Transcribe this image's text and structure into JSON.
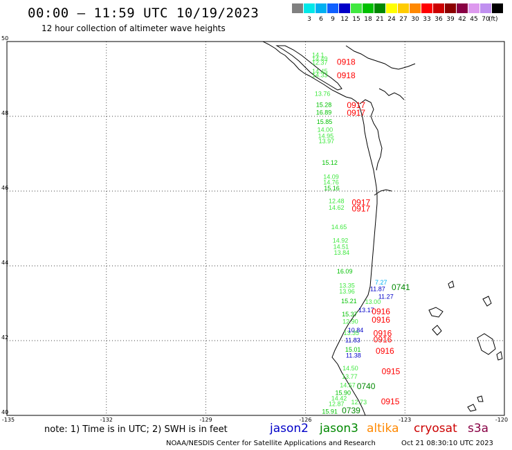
{
  "header": {
    "title": "00:00 — 11:59 UTC 10/19/2023",
    "subtitle": "12 hour collection of altimeter wave heights"
  },
  "color_scale": {
    "unit": "(ft)",
    "bins": [
      {
        "label": "",
        "color": "#808080"
      },
      {
        "label": "3",
        "color": "#00e8e8"
      },
      {
        "label": "6",
        "color": "#00b0f0"
      },
      {
        "label": "9",
        "color": "#1060ff"
      },
      {
        "label": "12",
        "color": "#0000c8"
      },
      {
        "label": "15",
        "color": "#40e840"
      },
      {
        "label": "18",
        "color": "#00c000"
      },
      {
        "label": "21",
        "color": "#008800"
      },
      {
        "label": "24",
        "color": "#ffff00"
      },
      {
        "label": "27",
        "color": "#ffcc00"
      },
      {
        "label": "30",
        "color": "#ff8800"
      },
      {
        "label": "33",
        "color": "#ff0000"
      },
      {
        "label": "36",
        "color": "#cc0000"
      },
      {
        "label": "39",
        "color": "#8b0000"
      },
      {
        "label": "42",
        "color": "#880044"
      },
      {
        "label": "45",
        "color": "#dd99ee"
      },
      {
        "label": "70",
        "color": "#c090f0"
      },
      {
        "label": "",
        "color": "#000000"
      }
    ]
  },
  "axes": {
    "lat_labels": [
      "50",
      "48",
      "46",
      "44",
      "42",
      "40"
    ],
    "lon_labels": [
      "-135",
      "-132",
      "-129",
      "-126",
      "-123",
      "-120"
    ]
  },
  "observations": [
    {
      "text": "14.1",
      "lon": -125.8,
      "lat": 49.58,
      "color": "#40e840"
    },
    {
      "text": "14.49",
      "lon": -125.8,
      "lat": 49.48,
      "color": "#40e840"
    },
    {
      "text": "12.37",
      "lon": -125.8,
      "lat": 49.38,
      "color": "#40e840"
    },
    {
      "text": "14.45",
      "lon": -125.8,
      "lat": 49.15,
      "color": "#40e840"
    },
    {
      "text": "14.33",
      "lon": -125.8,
      "lat": 49.05,
      "color": "#40e840"
    },
    {
      "text": "13.76",
      "lon": -125.72,
      "lat": 48.55,
      "color": "#40e840"
    },
    {
      "text": "15.28",
      "lon": -125.68,
      "lat": 48.25,
      "color": "#00c000"
    },
    {
      "text": "16.89",
      "lon": -125.68,
      "lat": 48.05,
      "color": "#00c000"
    },
    {
      "text": "15.85",
      "lon": -125.66,
      "lat": 47.8,
      "color": "#00c000"
    },
    {
      "text": "14.00",
      "lon": -125.64,
      "lat": 47.58,
      "color": "#40e840"
    },
    {
      "text": "14.95",
      "lon": -125.62,
      "lat": 47.42,
      "color": "#40e840"
    },
    {
      "text": "13.97",
      "lon": -125.6,
      "lat": 47.28,
      "color": "#40e840"
    },
    {
      "text": "15.12",
      "lon": -125.5,
      "lat": 46.7,
      "color": "#00c000"
    },
    {
      "text": "14.09",
      "lon": -125.46,
      "lat": 46.32,
      "color": "#40e840"
    },
    {
      "text": "14.76",
      "lon": -125.46,
      "lat": 46.18,
      "color": "#40e840"
    },
    {
      "text": "15.16",
      "lon": -125.44,
      "lat": 46.02,
      "color": "#00c000"
    },
    {
      "text": "12.48",
      "lon": -125.3,
      "lat": 45.68,
      "color": "#40e840"
    },
    {
      "text": "14.62",
      "lon": -125.3,
      "lat": 45.5,
      "color": "#40e840"
    },
    {
      "text": "14.65",
      "lon": -125.22,
      "lat": 44.98,
      "color": "#40e840"
    },
    {
      "text": "14.92",
      "lon": -125.18,
      "lat": 44.62,
      "color": "#40e840"
    },
    {
      "text": "14.51",
      "lon": -125.16,
      "lat": 44.45,
      "color": "#40e840"
    },
    {
      "text": "13.84",
      "lon": -125.14,
      "lat": 44.3,
      "color": "#40e840"
    },
    {
      "text": "16.09",
      "lon": -125.05,
      "lat": 43.8,
      "color": "#00c000"
    },
    {
      "text": "13.35",
      "lon": -124.98,
      "lat": 43.42,
      "color": "#40e840"
    },
    {
      "text": "13.96",
      "lon": -124.98,
      "lat": 43.26,
      "color": "#40e840"
    },
    {
      "text": "15.21",
      "lon": -124.92,
      "lat": 43.0,
      "color": "#00c000"
    },
    {
      "text": "15.37",
      "lon": -124.9,
      "lat": 42.65,
      "color": "#00c000"
    },
    {
      "text": "12.90",
      "lon": -124.88,
      "lat": 42.45,
      "color": "#40e840"
    },
    {
      "text": "13.35",
      "lon": -124.85,
      "lat": 42.15,
      "color": "#40e840"
    },
    {
      "text": "11.83",
      "lon": -124.8,
      "lat": 41.95,
      "color": "#0000c8"
    },
    {
      "text": "15.01",
      "lon": -124.8,
      "lat": 41.7,
      "color": "#00c000"
    },
    {
      "text": "11.38",
      "lon": -124.78,
      "lat": 41.55,
      "color": "#0000c8"
    },
    {
      "text": "14.50",
      "lon": -124.88,
      "lat": 41.2,
      "color": "#40e840"
    },
    {
      "text": "13.77",
      "lon": -124.9,
      "lat": 40.98,
      "color": "#40e840"
    },
    {
      "text": "14.57",
      "lon": -124.96,
      "lat": 40.75,
      "color": "#40e840"
    },
    {
      "text": "15.90",
      "lon": -125.1,
      "lat": 40.55,
      "color": "#00c000"
    },
    {
      "text": "14.42",
      "lon": -125.22,
      "lat": 40.4,
      "color": "#40e840"
    },
    {
      "text": "12.87",
      "lon": -125.3,
      "lat": 40.25,
      "color": "#40e840"
    },
    {
      "text": "15.91",
      "lon": -125.5,
      "lat": 40.05,
      "color": "#00c000"
    },
    {
      "text": "12.73",
      "lon": -124.62,
      "lat": 40.3,
      "color": "#40e840"
    },
    {
      "text": "7.27",
      "lon": -123.9,
      "lat": 43.5,
      "color": "#00b0f0"
    },
    {
      "text": "11.87",
      "lon": -124.05,
      "lat": 43.32,
      "color": "#0000c8"
    },
    {
      "text": "11.27",
      "lon": -123.8,
      "lat": 43.12,
      "color": "#0000c8"
    },
    {
      "text": "13.00",
      "lon": -124.2,
      "lat": 42.98,
      "color": "#40e840"
    },
    {
      "text": "13.17",
      "lon": -124.4,
      "lat": 42.76,
      "color": "#0000c8"
    },
    {
      "text": "10.84",
      "lon": -124.72,
      "lat": 42.22,
      "color": "#0000c8"
    }
  ],
  "time_labels": [
    {
      "text": "0918",
      "lon": -125.05,
      "lat": 49.38,
      "color": "#ff0000"
    },
    {
      "text": "0918",
      "lon": -125.05,
      "lat": 49.02,
      "color": "#ff0000"
    },
    {
      "text": "0917",
      "lon": -124.75,
      "lat": 48.22,
      "color": "#ff0000"
    },
    {
      "text": "0917",
      "lon": -124.75,
      "lat": 48.02,
      "color": "#ff0000"
    },
    {
      "text": "0917",
      "lon": -124.6,
      "lat": 45.62,
      "color": "#ff0000"
    },
    {
      "text": "0917",
      "lon": -124.6,
      "lat": 45.45,
      "color": "#ff0000"
    },
    {
      "text": "0741",
      "lon": -123.4,
      "lat": 43.35,
      "color": "#008800"
    },
    {
      "text": "0916",
      "lon": -124.0,
      "lat": 42.7,
      "color": "#ff0000"
    },
    {
      "text": "0916",
      "lon": -124.0,
      "lat": 42.48,
      "color": "#ff0000"
    },
    {
      "text": "0916",
      "lon": -123.95,
      "lat": 42.12,
      "color": "#ff0000"
    },
    {
      "text": "0916",
      "lon": -123.95,
      "lat": 41.95,
      "color": "#ff0000"
    },
    {
      "text": "0916",
      "lon": -123.88,
      "lat": 41.65,
      "color": "#ff0000"
    },
    {
      "text": "0915",
      "lon": -123.7,
      "lat": 41.1,
      "color": "#ff0000"
    },
    {
      "text": "0740",
      "lon": -124.45,
      "lat": 40.7,
      "color": "#008800"
    },
    {
      "text": "0915",
      "lon": -123.72,
      "lat": 40.3,
      "color": "#ff0000"
    },
    {
      "text": "0739",
      "lon": -124.9,
      "lat": 40.06,
      "color": "#008800"
    }
  ],
  "footer": {
    "note": "note: 1) Time is in UTC; 2) SWH is in feet",
    "legend": [
      {
        "label": "jason2",
        "color": "#0000c8"
      },
      {
        "label": "jason3",
        "color": "#008800"
      },
      {
        "label": "altika",
        "color": "#ff8800"
      },
      {
        "label": "cryosat",
        "color": "#cc0000"
      },
      {
        "label": "s3a",
        "color": "#880044"
      }
    ],
    "credit": "NOAA/NESDIS Center for Satellite Applications and Research",
    "timestamp": "Oct 21 08:30:10 UTC 2023"
  }
}
